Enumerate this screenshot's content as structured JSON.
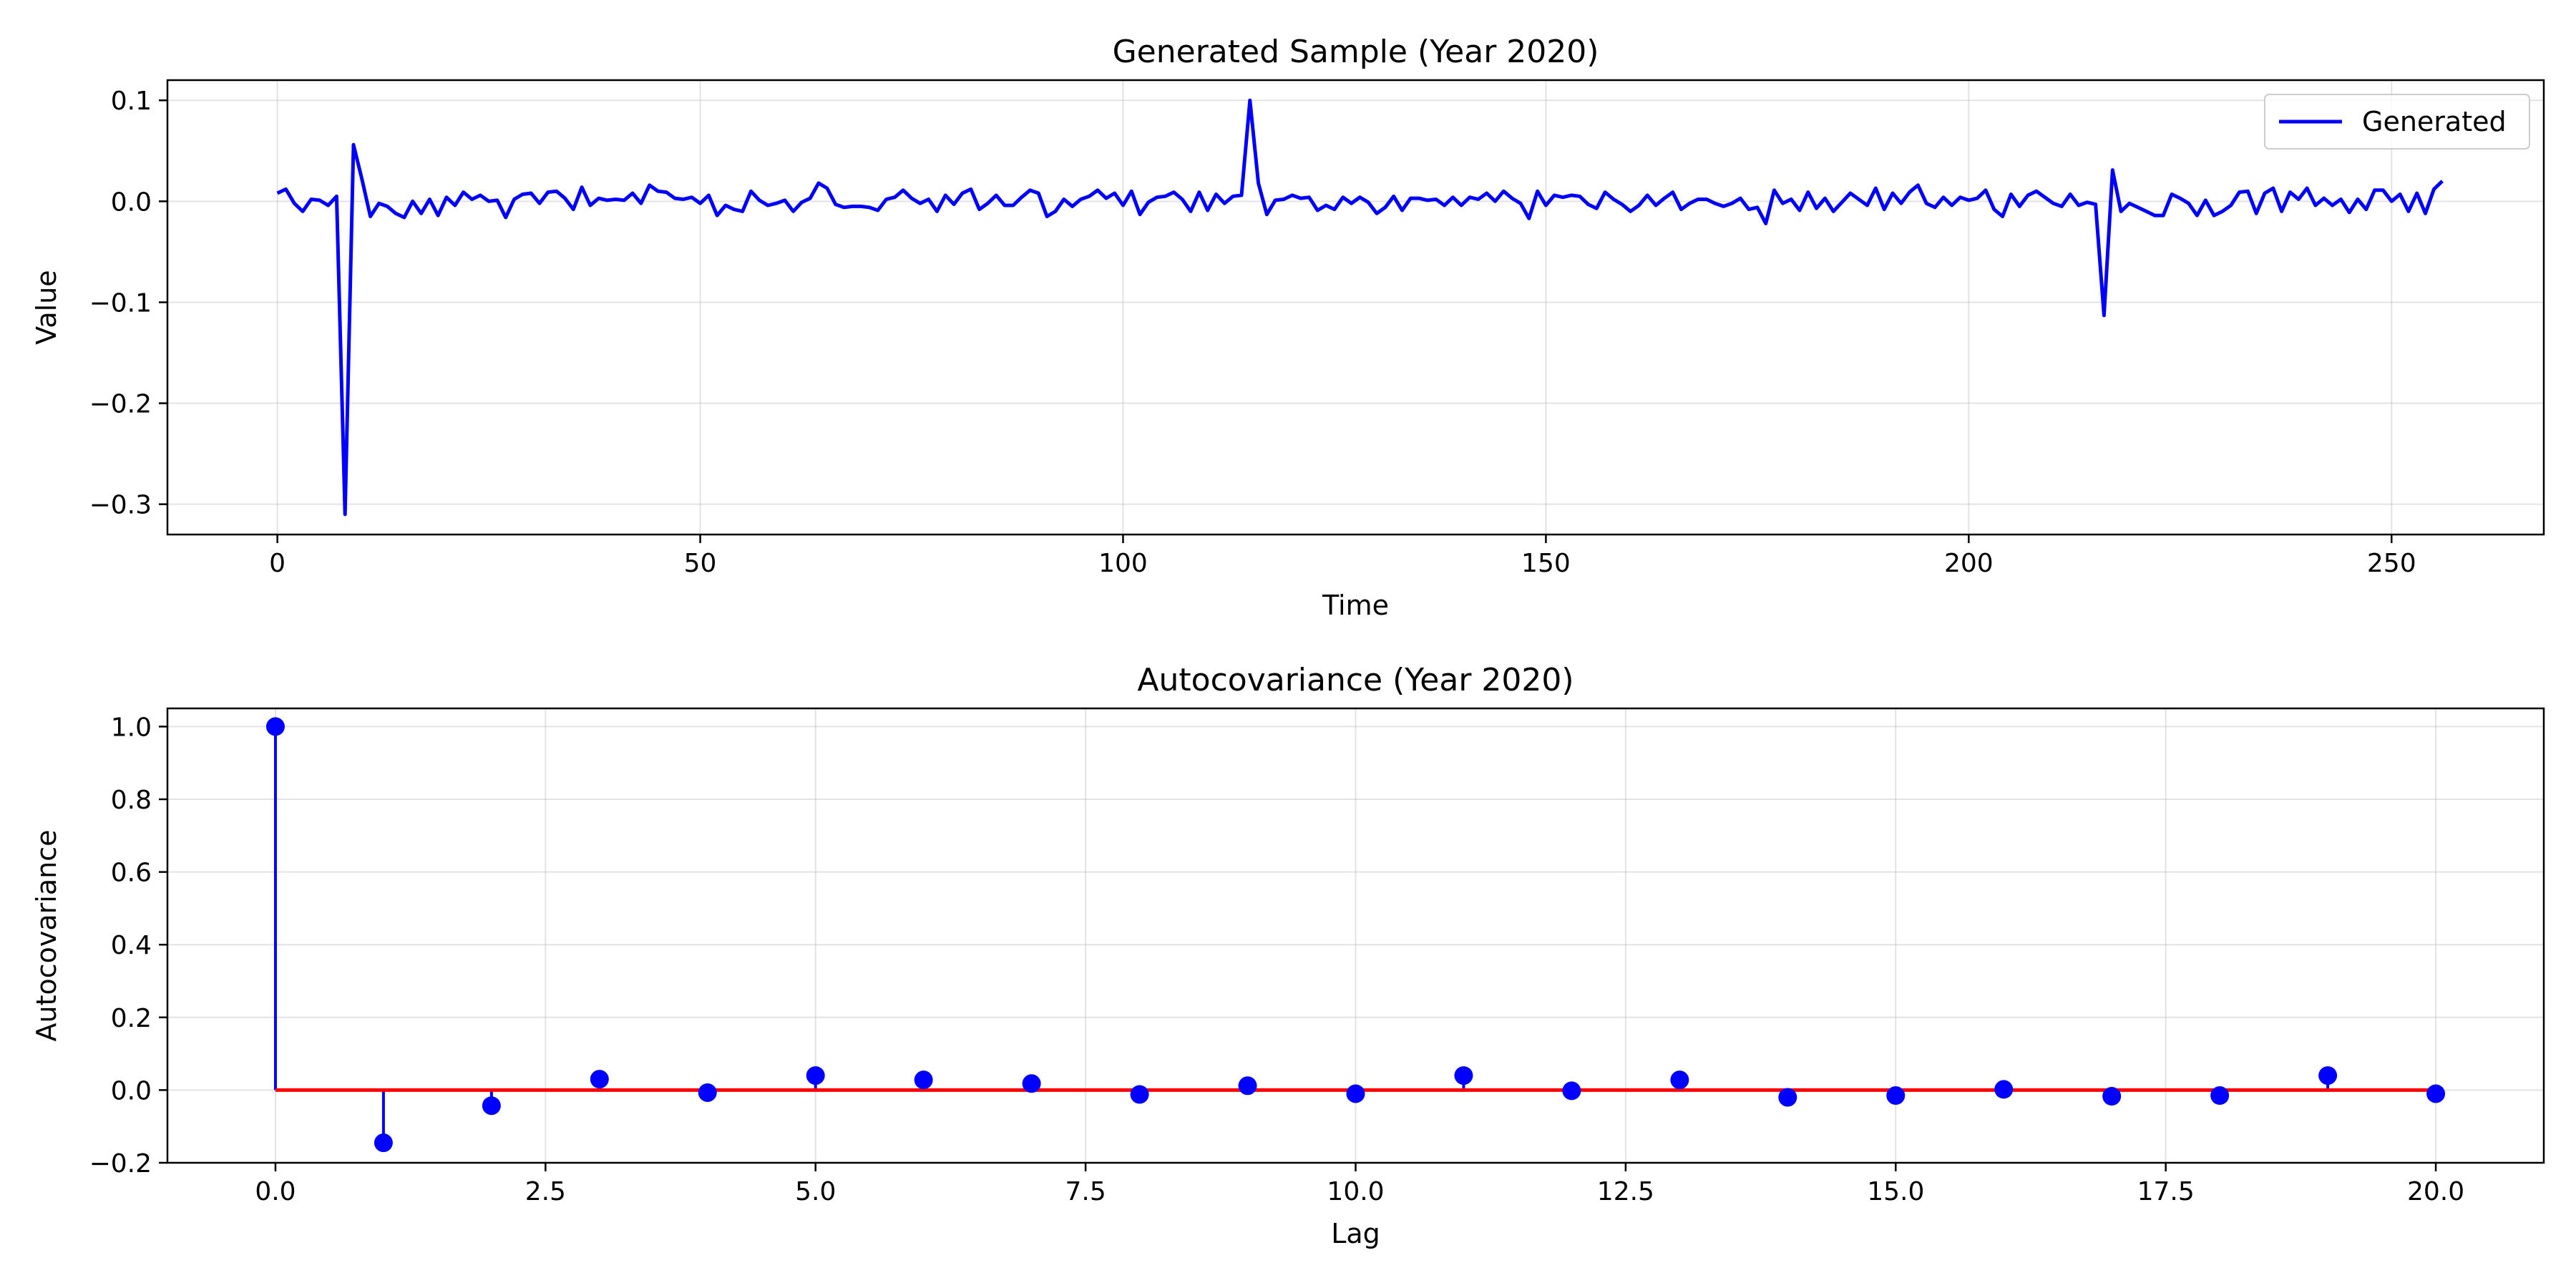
{
  "colors": {
    "series": "#0000ff",
    "baseline": "#ff0000",
    "grid": "#b0b0b0"
  },
  "chart_data": [
    {
      "type": "line",
      "title": "Generated Sample (Year 2020)",
      "xlabel": "Time",
      "ylabel": "Value",
      "xlim": [
        -13,
        268
      ],
      "ylim": [
        -0.33,
        0.12
      ],
      "xticks": [
        0,
        50,
        100,
        150,
        200,
        250
      ],
      "xtick_labels": [
        "0",
        "50",
        "100",
        "150",
        "200",
        "250"
      ],
      "yticks": [
        0.1,
        0.0,
        -0.1,
        -0.2,
        -0.3
      ],
      "ytick_labels": [
        "0.1",
        "0.0",
        "−0.1",
        "−0.2",
        "−0.3"
      ],
      "grid": true,
      "legend": {
        "placement": "top-right",
        "entries": [
          "Generated"
        ]
      },
      "series": [
        {
          "name": "Generated",
          "x_start": 0,
          "x_step": 1,
          "values": [
            0.008,
            0.012,
            -0.002,
            -0.01,
            0.002,
            0.001,
            -0.004,
            0.005,
            -0.31,
            0.056,
            0.022,
            -0.015,
            -0.002,
            -0.005,
            -0.012,
            -0.016,
            0.0,
            -0.012,
            0.002,
            -0.014,
            0.004,
            -0.004,
            0.009,
            0.002,
            0.006,
            0.0,
            0.001,
            -0.016,
            0.002,
            0.007,
            0.008,
            -0.002,
            0.009,
            0.01,
            0.003,
            -0.008,
            0.014,
            -0.004,
            0.003,
            0.001,
            0.002,
            0.001,
            0.008,
            -0.002,
            0.016,
            0.01,
            0.009,
            0.003,
            0.002,
            0.004,
            -0.002,
            0.006,
            -0.014,
            -0.004,
            -0.008,
            -0.01,
            0.01,
            0.001,
            -0.004,
            -0.002,
            0.001,
            -0.01,
            -0.001,
            0.003,
            0.018,
            0.013,
            -0.003,
            -0.006,
            -0.005,
            -0.005,
            -0.006,
            -0.009,
            0.002,
            0.004,
            0.011,
            0.003,
            -0.002,
            0.002,
            -0.01,
            0.006,
            -0.003,
            0.008,
            0.012,
            -0.008,
            -0.002,
            0.006,
            -0.004,
            -0.004,
            0.004,
            0.011,
            0.008,
            -0.015,
            -0.01,
            0.002,
            -0.005,
            0.002,
            0.005,
            0.011,
            0.003,
            0.008,
            -0.004,
            0.01,
            -0.013,
            -0.001,
            0.004,
            0.005,
            0.009,
            0.002,
            -0.01,
            0.009,
            -0.009,
            0.007,
            -0.002,
            0.005,
            0.006,
            0.1,
            0.018,
            -0.013,
            0.001,
            0.002,
            0.006,
            0.003,
            0.004,
            -0.009,
            -0.004,
            -0.008,
            0.004,
            -0.002,
            0.004,
            -0.001,
            -0.012,
            -0.006,
            0.005,
            -0.009,
            0.003,
            0.003,
            0.001,
            0.002,
            -0.004,
            0.004,
            -0.004,
            0.004,
            0.002,
            0.008,
            0.0,
            0.01,
            0.003,
            -0.002,
            -0.017,
            0.01,
            -0.004,
            0.006,
            0.004,
            0.006,
            0.005,
            -0.003,
            -0.007,
            0.009,
            0.002,
            -0.003,
            -0.01,
            -0.004,
            0.006,
            -0.004,
            0.003,
            0.009,
            -0.008,
            -0.002,
            0.002,
            0.002,
            -0.002,
            -0.005,
            -0.002,
            0.003,
            -0.008,
            -0.006,
            -0.022,
            0.011,
            -0.002,
            0.002,
            -0.009,
            0.009,
            -0.007,
            0.003,
            -0.01,
            -0.001,
            0.008,
            0.002,
            -0.004,
            0.013,
            -0.008,
            0.008,
            -0.002,
            0.009,
            0.016,
            -0.002,
            -0.006,
            0.004,
            -0.004,
            0.004,
            0.001,
            0.003,
            0.011,
            -0.008,
            -0.015,
            0.007,
            -0.005,
            0.006,
            0.01,
            0.004,
            -0.002,
            -0.005,
            0.007,
            -0.004,
            -0.001,
            -0.003,
            -0.113,
            0.031,
            -0.01,
            -0.002,
            -0.006,
            -0.01,
            -0.014,
            -0.014,
            0.007,
            0.003,
            -0.002,
            -0.014,
            0.001,
            -0.014,
            -0.01,
            -0.004,
            0.009,
            0.01,
            -0.012,
            0.008,
            0.013,
            -0.01,
            0.009,
            0.002,
            0.013,
            -0.004,
            0.003,
            -0.004,
            0.002,
            -0.011,
            0.002,
            -0.008,
            0.011,
            0.011,
            0.0,
            0.007,
            -0.01,
            0.008,
            -0.012,
            0.012,
            0.02
          ]
        }
      ]
    },
    {
      "type": "stem",
      "title": "Autocovariance (Year 2020)",
      "xlabel": "Lag",
      "ylabel": "Autocovariance",
      "xlim": [
        -1.0,
        21.0
      ],
      "ylim": [
        -0.2,
        1.05
      ],
      "xticks": [
        0.0,
        2.5,
        5.0,
        7.5,
        10.0,
        12.5,
        15.0,
        17.5,
        20.0
      ],
      "xtick_labels": [
        "0.0",
        "2.5",
        "5.0",
        "7.5",
        "10.0",
        "12.5",
        "15.0",
        "17.5",
        "20.0"
      ],
      "yticks": [
        1.0,
        0.8,
        0.6,
        0.4,
        0.2,
        0.0,
        -0.2
      ],
      "ytick_labels": [
        "1.0",
        "0.8",
        "0.6",
        "0.4",
        "0.2",
        "0.0",
        "−0.2"
      ],
      "grid": true,
      "baseline": 0.0,
      "x": [
        0,
        1,
        2,
        3,
        4,
        5,
        6,
        7,
        8,
        9,
        10,
        11,
        12,
        13,
        14,
        15,
        16,
        17,
        18,
        19,
        20
      ],
      "values": [
        1.0,
        -0.145,
        -0.043,
        0.03,
        -0.007,
        0.04,
        0.028,
        0.018,
        -0.012,
        0.012,
        -0.01,
        0.04,
        -0.002,
        0.028,
        -0.02,
        -0.015,
        0.002,
        -0.017,
        -0.015,
        0.04,
        -0.01
      ]
    }
  ]
}
